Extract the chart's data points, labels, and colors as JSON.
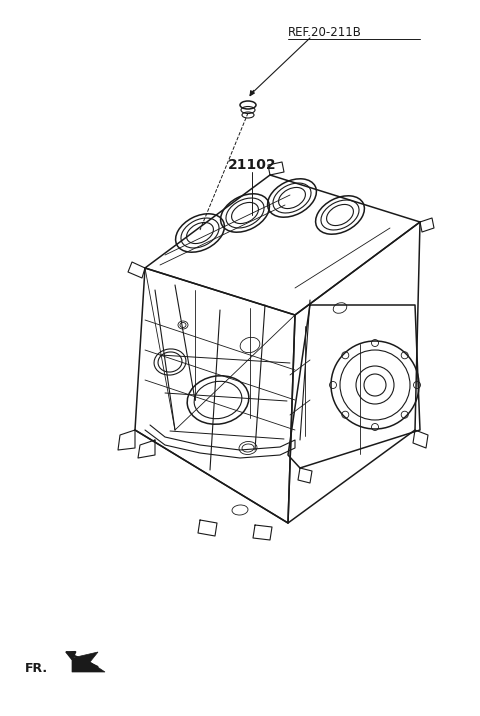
{
  "bg_color": "#ffffff",
  "line_color": "#1a1a1a",
  "label_ref": "REF.20-211B",
  "label_part": "21102",
  "label_fr": "FR.",
  "fig_width": 4.8,
  "fig_height": 7.16,
  "dpi": 100
}
